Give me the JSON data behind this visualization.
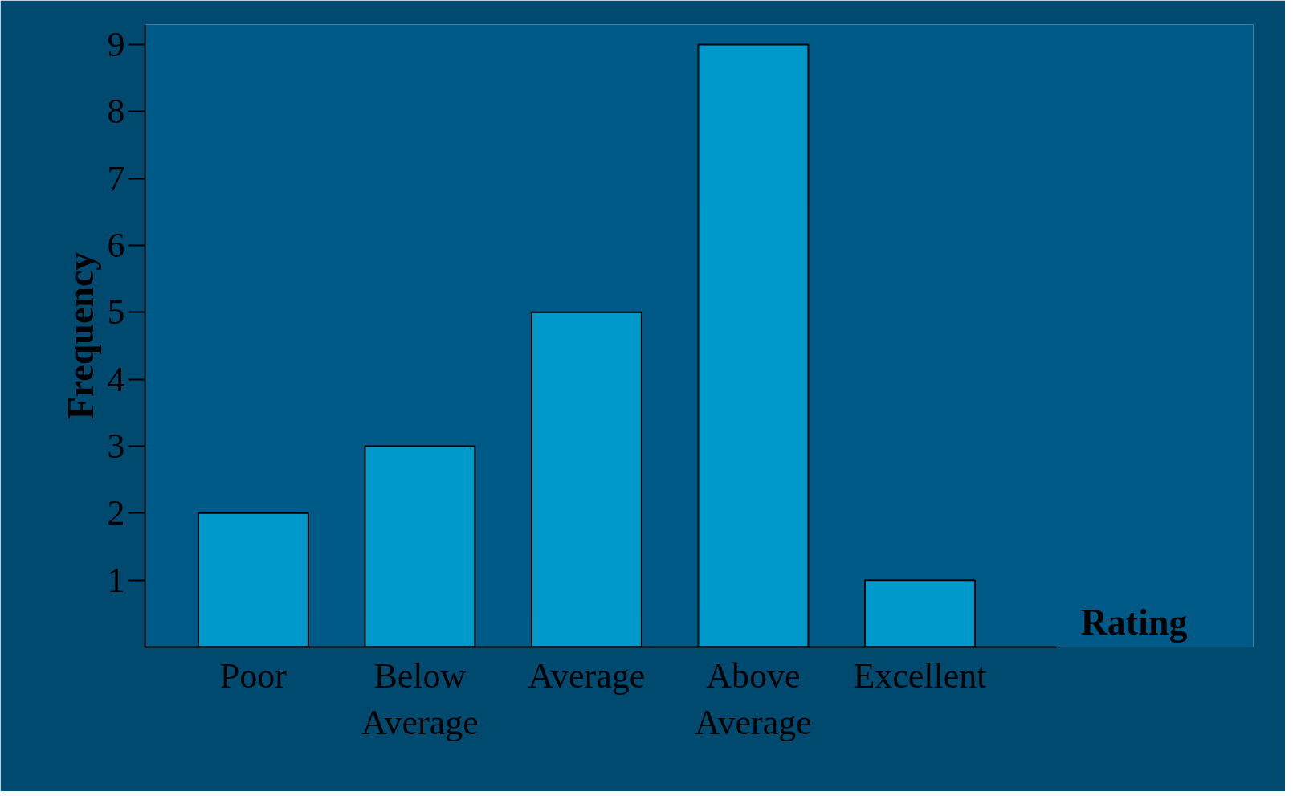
{
  "chart_data": {
    "type": "bar",
    "xlabel": "Rating",
    "ylabel": "Frequency",
    "categories": [
      "Poor",
      "Below\nAverage",
      "Average",
      "Above\nAverage",
      "Excellent"
    ],
    "values": [
      2,
      3,
      5,
      9,
      1
    ],
    "color": "#0099cc",
    "ylim": [
      0,
      9.3
    ],
    "yticks": [
      1,
      2,
      3,
      4,
      5,
      6,
      7,
      8,
      9
    ],
    "grid": false
  }
}
